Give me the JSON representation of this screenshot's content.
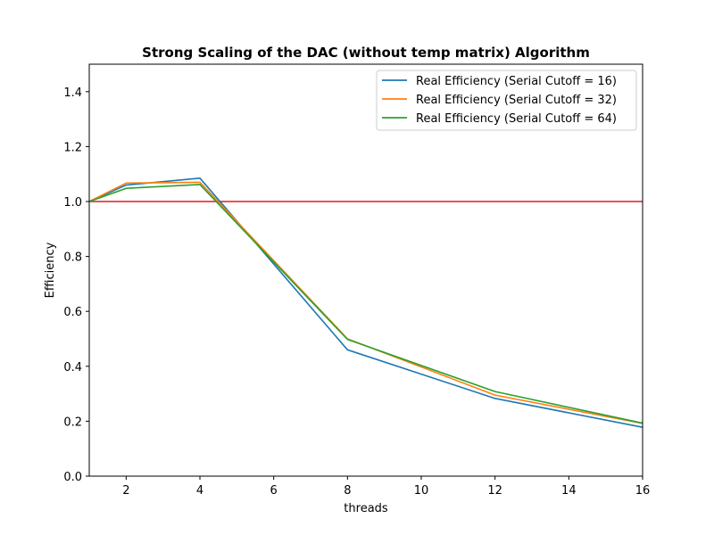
{
  "chart_data": {
    "type": "line",
    "title": "Strong Scaling of the DAC (without temp matrix) Algorithm",
    "xlabel": "threads",
    "ylabel": "Efficiency",
    "xlim": [
      1,
      16
    ],
    "ylim": [
      0.0,
      1.5
    ],
    "xticks": [
      2,
      4,
      6,
      8,
      10,
      12,
      14,
      16
    ],
    "yticks": [
      0.0,
      0.2,
      0.4,
      0.6,
      0.8,
      1.0,
      1.2,
      1.4
    ],
    "ytick_labels": [
      "0.0",
      "0.2",
      "0.4",
      "0.6",
      "0.8",
      "1.0",
      "1.2",
      "1.4"
    ],
    "grid": false,
    "legend_position": "top-right",
    "x": [
      1,
      2,
      4,
      8,
      12,
      16
    ],
    "series": [
      {
        "name": "Real Efficiency (Serial Cutoff = 16)",
        "color": "#1f77b4",
        "values": [
          1.0,
          1.06,
          1.085,
          0.46,
          0.283,
          0.178
        ]
      },
      {
        "name": "Real Efficiency (Serial Cutoff = 32)",
        "color": "#ff7f0e",
        "values": [
          1.0,
          1.067,
          1.07,
          0.5,
          0.295,
          0.192
        ]
      },
      {
        "name": "Real Efficiency (Serial Cutoff = 64)",
        "color": "#2ca02c",
        "values": [
          1.0,
          1.048,
          1.062,
          0.498,
          0.308,
          0.193
        ]
      }
    ],
    "reference_line": {
      "y": 1.0,
      "color": "#e31a1c"
    }
  }
}
